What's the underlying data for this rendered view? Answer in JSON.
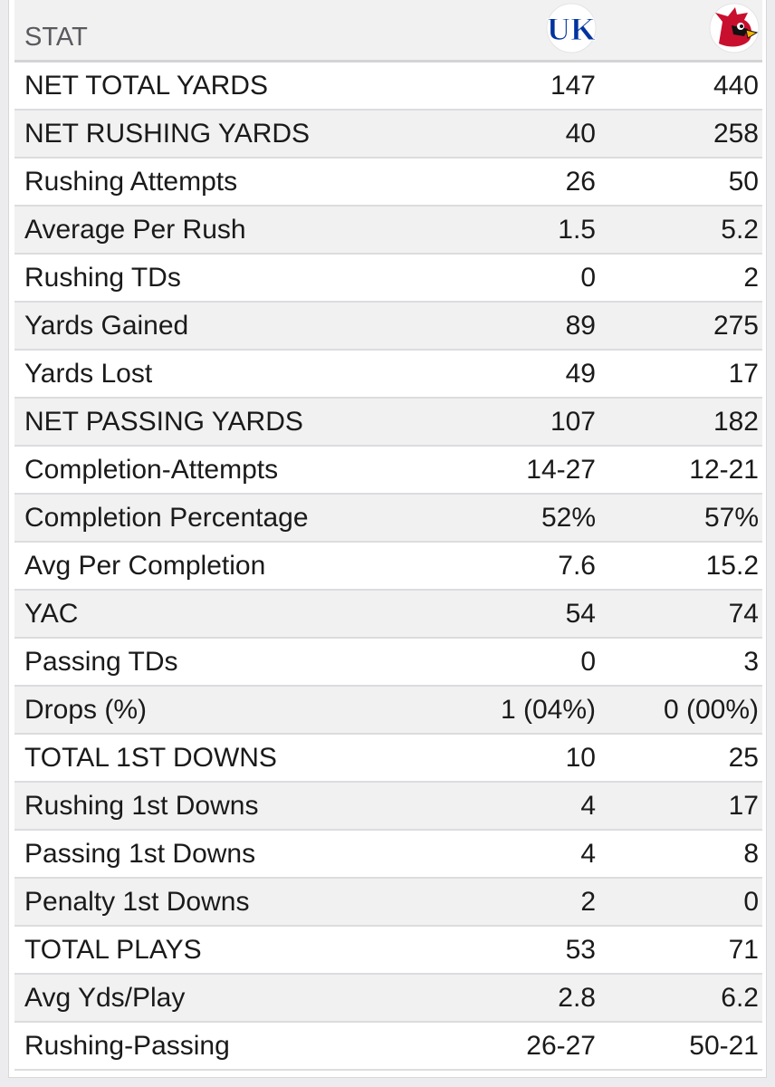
{
  "header": {
    "stat_label": "STAT",
    "team1": {
      "logo_text": "UK",
      "icon": "kentucky-logo-icon",
      "color": "#0033a0"
    },
    "team2": {
      "icon": "louisville-cardinal-logo-icon",
      "color": "#c8102e"
    }
  },
  "rows": [
    {
      "label": "NET TOTAL YARDS",
      "v1": "147",
      "v2": "440"
    },
    {
      "label": "NET RUSHING YARDS",
      "v1": "40",
      "v2": "258"
    },
    {
      "label": "Rushing Attempts",
      "v1": "26",
      "v2": "50"
    },
    {
      "label": "Average Per Rush",
      "v1": "1.5",
      "v2": "5.2"
    },
    {
      "label": "Rushing TDs",
      "v1": "0",
      "v2": "2"
    },
    {
      "label": "Yards Gained",
      "v1": "89",
      "v2": "275"
    },
    {
      "label": "Yards Lost",
      "v1": "49",
      "v2": "17"
    },
    {
      "label": "NET PASSING YARDS",
      "v1": "107",
      "v2": "182"
    },
    {
      "label": "Completion-Attempts",
      "v1": "14-27",
      "v2": "12-21"
    },
    {
      "label": "Completion Percentage",
      "v1": "52%",
      "v2": "57%"
    },
    {
      "label": "Avg Per Completion",
      "v1": "7.6",
      "v2": "15.2"
    },
    {
      "label": "YAC",
      "v1": "54",
      "v2": "74"
    },
    {
      "label": "Passing TDs",
      "v1": "0",
      "v2": "3"
    },
    {
      "label": "Drops (%)",
      "v1": "1 (04%)",
      "v2": "0 (00%)"
    },
    {
      "label": "TOTAL 1ST DOWNS",
      "v1": "10",
      "v2": "25"
    },
    {
      "label": "Rushing 1st Downs",
      "v1": "4",
      "v2": "17"
    },
    {
      "label": "Passing 1st Downs",
      "v1": "4",
      "v2": "8"
    },
    {
      "label": "Penalty 1st Downs",
      "v1": "2",
      "v2": "0"
    },
    {
      "label": "TOTAL PLAYS",
      "v1": "53",
      "v2": "71"
    },
    {
      "label": "Avg Yds/Play",
      "v1": "2.8",
      "v2": "6.2"
    },
    {
      "label": "Rushing-Passing",
      "v1": "26-27",
      "v2": "50-21"
    }
  ]
}
